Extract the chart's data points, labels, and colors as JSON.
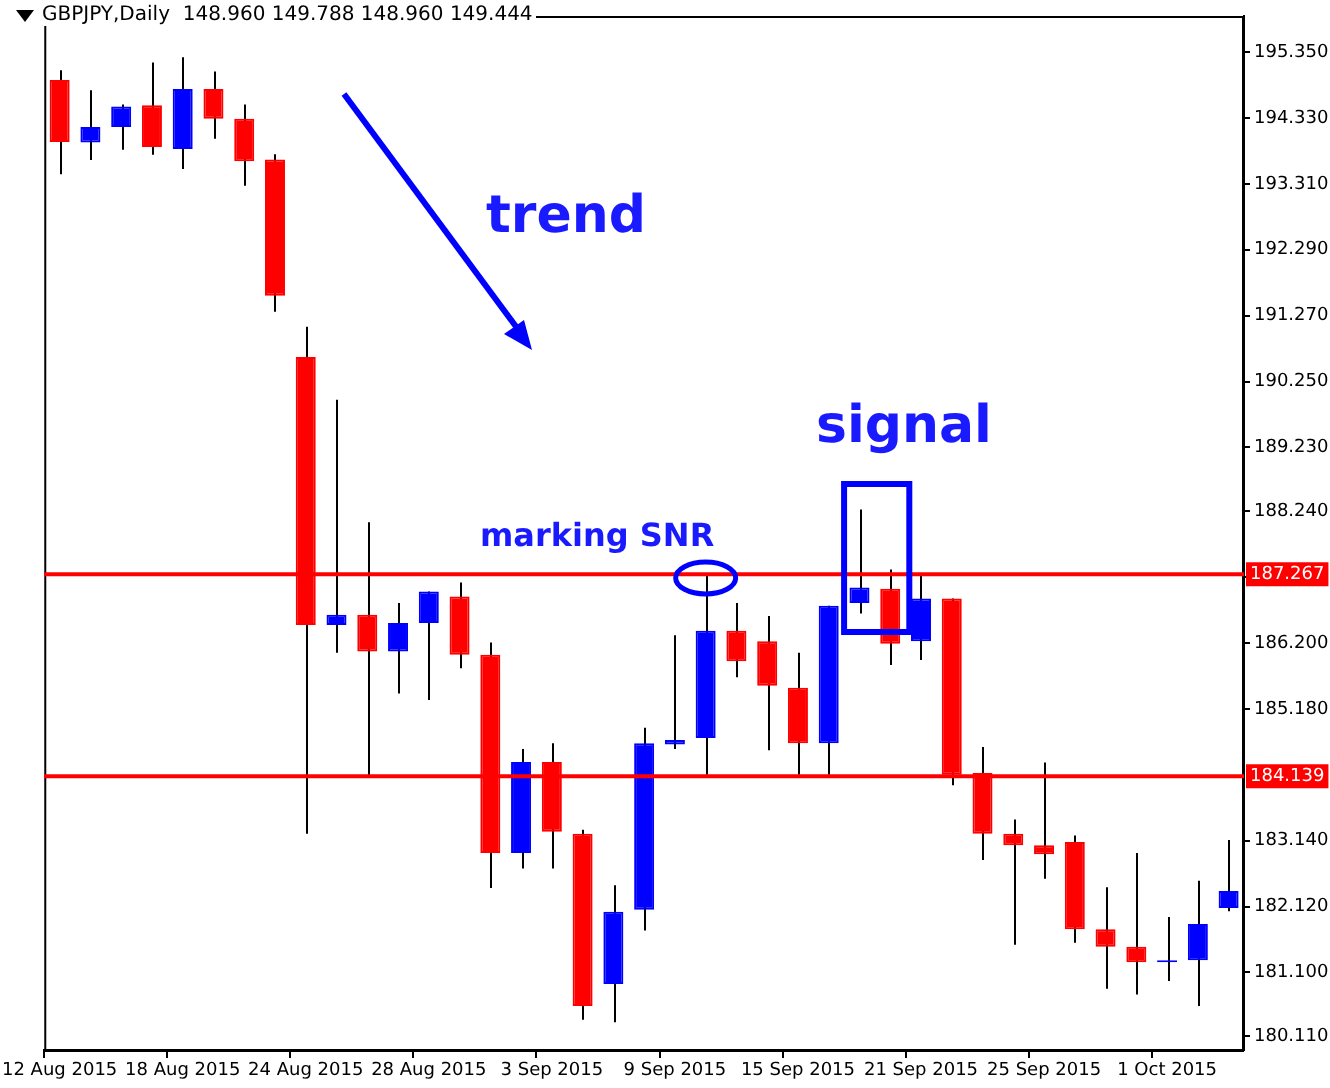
{
  "chart_data": {
    "type": "candlestick",
    "title": "GBPJPY,Daily  148.960 149.788 148.960 149.444",
    "categories": [
      "12 Aug 2015",
      null,
      null,
      null,
      "18 Aug 2015",
      null,
      null,
      null,
      "24 Aug 2015",
      null,
      null,
      null,
      "28 Aug 2015",
      null,
      null,
      null,
      "3 Sep 2015",
      null,
      null,
      null,
      "9 Sep 2015",
      null,
      null,
      null,
      "15 Sep 2015",
      null,
      null,
      null,
      "21 Sep 2015",
      null,
      null,
      null,
      "25 Sep 2015",
      null,
      null,
      null,
      "1 Oct 2015",
      null,
      null
    ],
    "ohlc": [
      [
        194.92,
        195.07,
        193.46,
        193.96
      ],
      [
        193.95,
        194.76,
        193.68,
        194.19
      ],
      [
        194.19,
        194.54,
        193.84,
        194.51
      ],
      [
        194.53,
        195.19,
        193.76,
        193.88
      ],
      [
        193.85,
        195.27,
        193.54,
        194.78
      ],
      [
        194.78,
        195.05,
        194.01,
        194.32
      ],
      [
        194.32,
        194.54,
        193.28,
        193.66
      ],
      [
        193.69,
        193.77,
        191.33,
        191.58
      ],
      [
        190.63,
        191.1,
        183.25,
        186.48
      ],
      [
        186.48,
        189.97,
        186.05,
        186.64
      ],
      [
        186.64,
        188.07,
        184.11,
        186.07
      ],
      [
        186.07,
        186.82,
        185.42,
        186.51
      ],
      [
        186.51,
        187.0,
        185.32,
        187.0
      ],
      [
        186.92,
        187.14,
        185.81,
        186.02
      ],
      [
        186.02,
        186.21,
        182.41,
        182.95
      ],
      [
        182.95,
        184.56,
        182.71,
        184.36
      ],
      [
        184.36,
        184.65,
        182.71,
        183.28
      ],
      [
        183.25,
        183.31,
        180.37,
        180.58
      ],
      [
        180.92,
        182.45,
        180.33,
        182.04
      ],
      [
        182.07,
        184.89,
        181.75,
        184.65
      ],
      [
        184.63,
        186.32,
        184.56,
        184.7
      ],
      [
        184.73,
        187.28,
        184.16,
        186.39
      ],
      [
        186.39,
        186.82,
        185.67,
        185.92
      ],
      [
        186.23,
        186.62,
        184.54,
        185.54
      ],
      [
        185.51,
        186.05,
        184.16,
        184.65
      ],
      [
        184.65,
        186.78,
        184.16,
        186.78
      ],
      [
        186.82,
        188.27,
        186.66,
        187.06
      ],
      [
        187.04,
        187.34,
        185.86,
        186.19
      ],
      [
        186.23,
        187.28,
        185.94,
        186.89
      ],
      [
        186.89,
        186.89,
        184.0,
        184.16
      ],
      [
        184.19,
        184.59,
        182.84,
        183.25
      ],
      [
        183.25,
        183.47,
        181.53,
        183.07
      ],
      [
        183.07,
        184.35,
        182.55,
        182.93
      ],
      [
        183.12,
        183.22,
        181.56,
        181.77
      ],
      [
        181.77,
        182.42,
        180.85,
        181.5
      ],
      [
        181.5,
        182.95,
        180.76,
        181.26
      ],
      [
        181.26,
        181.96,
        180.97,
        181.27
      ],
      [
        181.29,
        182.52,
        180.58,
        181.85
      ],
      [
        182.1,
        183.15,
        182.05,
        182.36
      ]
    ],
    "colors": [
      "#ff0000",
      "#0000ff",
      "#0000ff",
      "#ff0000",
      "#0000ff",
      "#ff0000",
      "#ff0000",
      "#ff0000",
      "#ff0000",
      "#0000ff",
      "#ff0000",
      "#0000ff",
      "#0000ff",
      "#ff0000",
      "#ff0000",
      "#0000ff",
      "#ff0000",
      "#ff0000",
      "#0000ff",
      "#0000ff",
      "#0000ff",
      "#0000ff",
      "#ff0000",
      "#ff0000",
      "#ff0000",
      "#0000ff",
      "#0000ff",
      "#ff0000",
      "#0000ff",
      "#ff0000",
      "#ff0000",
      "#ff0000",
      "#ff0000",
      "#ff0000",
      "#ff0000",
      "#ff0000",
      "#0000ff",
      "#0000ff",
      "#0000ff"
    ],
    "ylim": [
      179.9,
      195.91
    ],
    "yticks": [
      {
        "value": 180.11,
        "label": "180.110"
      },
      {
        "value": 181.1,
        "label": "181.100"
      },
      {
        "value": 182.12,
        "label": "182.120"
      },
      {
        "value": 183.14,
        "label": "183.140"
      },
      {
        "value": 185.18,
        "label": "185.180"
      },
      {
        "value": 186.2,
        "label": "186.200"
      },
      {
        "value": 187.22,
        "label": null
      },
      {
        "value": 188.24,
        "label": "188.240"
      },
      {
        "value": 189.23,
        "label": "189.230"
      },
      {
        "value": 190.25,
        "label": "190.250"
      },
      {
        "value": 191.27,
        "label": "191.270"
      },
      {
        "value": 192.29,
        "label": "192.290"
      },
      {
        "value": 193.31,
        "label": "193.310"
      },
      {
        "value": 194.33,
        "label": "194.330"
      },
      {
        "value": 195.35,
        "label": "195.350"
      }
    ],
    "ref_lines": [
      {
        "axis": "y",
        "value": 187.267,
        "label": "187.267",
        "color": "#ff0000"
      },
      {
        "axis": "y",
        "value": 184.139,
        "label": "184.139",
        "color": "#ff0000"
      }
    ],
    "annotations": [
      "trend",
      "signal",
      "marking SNR"
    ],
    "grid": false,
    "legend": false
  }
}
